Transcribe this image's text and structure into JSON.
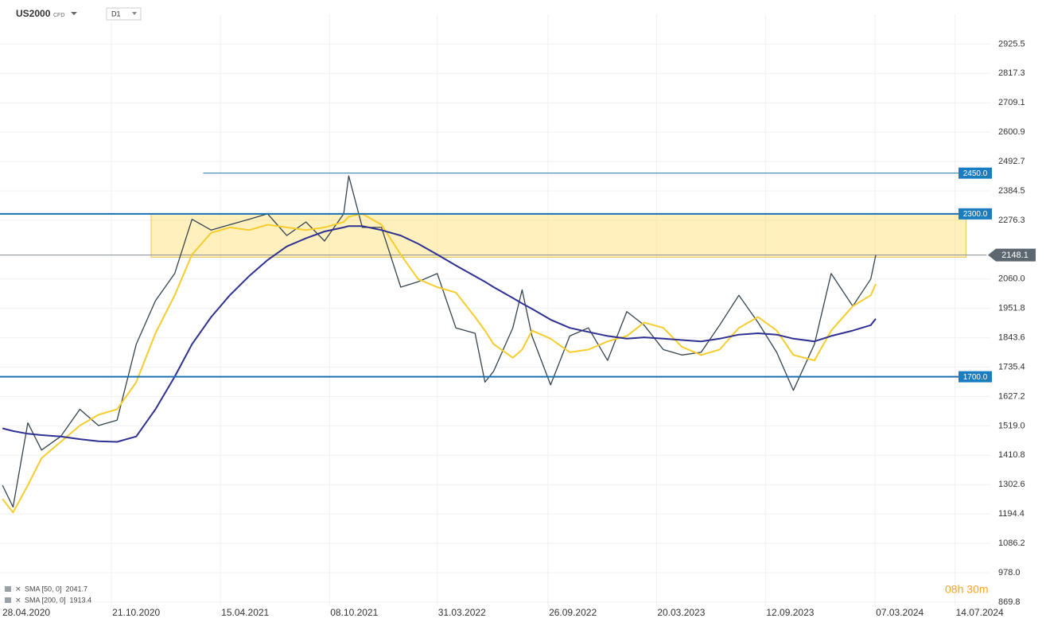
{
  "chart_data": {
    "type": "line",
    "symbol_type": "CFD",
    "timeframe": "D1",
    "x": [
      "28.04.2020",
      "15.05.2020",
      "08.06.2020",
      "30.06.2020",
      "31.07.2020",
      "31.08.2020",
      "30.09.2020",
      "30.10.2020",
      "30.11.2020",
      "31.12.2020",
      "31.01.2021",
      "28.02.2021",
      "31.03.2021",
      "30.04.2021",
      "31.05.2021",
      "30.06.2021",
      "31.07.2021",
      "31.08.2021",
      "30.09.2021",
      "31.10.2021",
      "08.11.2021",
      "30.11.2021",
      "31.12.2021",
      "31.01.2022",
      "28.02.2022",
      "31.03.2022",
      "30.04.2022",
      "31.05.2022",
      "16.06.2022",
      "30.06.2022",
      "31.07.2022",
      "15.08.2022",
      "31.08.2022",
      "30.09.2022",
      "31.10.2022",
      "30.11.2022",
      "31.12.2022",
      "31.01.2023",
      "28.02.2023",
      "31.03.2023",
      "30.04.2023",
      "31.05.2023",
      "30.06.2023",
      "31.07.2023",
      "31.08.2023",
      "30.09.2023",
      "27.10.2023",
      "30.11.2023",
      "27.12.2023",
      "31.01.2024",
      "29.02.2024",
      "08.03.2024"
    ],
    "series": [
      {
        "name": "US2000",
        "color": "#34434d",
        "width": 1.3,
        "values": [
          1300,
          1220,
          1530,
          1430,
          1480,
          1580,
          1520,
          1540,
          1820,
          1980,
          2080,
          2280,
          2240,
          2260,
          2280,
          2300,
          2220,
          2270,
          2200,
          2300,
          2440,
          2250,
          2250,
          2030,
          2050,
          2080,
          1880,
          1860,
          1680,
          1720,
          1880,
          2020,
          1850,
          1670,
          1850,
          1880,
          1760,
          1940,
          1890,
          1800,
          1780,
          1790,
          1890,
          2000,
          1900,
          1790,
          1650,
          1820,
          2080,
          1960,
          2060,
          2148.1
        ]
      },
      {
        "name": "SMA [50, 0]",
        "legend_value": 2041.7,
        "color": "#f5cd2e",
        "width": 2,
        "values": [
          1250,
          1200,
          1300,
          1400,
          1460,
          1520,
          1560,
          1580,
          1680,
          1860,
          2000,
          2150,
          2230,
          2250,
          2240,
          2260,
          2250,
          2240,
          2250,
          2270,
          2290,
          2300,
          2260,
          2150,
          2060,
          2030,
          2010,
          1920,
          1870,
          1820,
          1770,
          1800,
          1870,
          1840,
          1790,
          1800,
          1830,
          1850,
          1900,
          1880,
          1810,
          1780,
          1800,
          1880,
          1920,
          1870,
          1780,
          1760,
          1870,
          1960,
          2000,
          2041.7
        ]
      },
      {
        "name": "SMA [200, 0]",
        "legend_value": 1913.4,
        "color": "#2e3192",
        "width": 2,
        "values": [
          1510,
          1500,
          1490,
          1485,
          1480,
          1470,
          1462,
          1460,
          1480,
          1580,
          1700,
          1820,
          1920,
          2000,
          2070,
          2130,
          2180,
          2210,
          2235,
          2250,
          2255,
          2255,
          2240,
          2220,
          2190,
          2150,
          2110,
          2070,
          2050,
          2030,
          1990,
          1970,
          1950,
          1910,
          1880,
          1865,
          1850,
          1840,
          1845,
          1840,
          1835,
          1830,
          1840,
          1855,
          1860,
          1855,
          1840,
          1830,
          1850,
          1870,
          1890,
          1913.4
        ]
      }
    ],
    "last_price": 2148.1,
    "levels": [
      {
        "value": 2450,
        "label": "2450.0",
        "start": "18.03.2021",
        "color": "#1f7fa6",
        "width": 1
      },
      {
        "value": 2300,
        "label": "2300.0",
        "start": "24.04.2020",
        "color": "#1a6fb0",
        "width": 2
      },
      {
        "value": 1700,
        "label": "1700.0",
        "start": "24.04.2020",
        "color": "#1a6fb0",
        "width": 2
      }
    ],
    "zone": {
      "from": 2140,
      "to": 2300,
      "start": "24.12.2020",
      "end": "01.08.2024"
    },
    "xlim": [
      "24.04.2020",
      "09.09.2024"
    ],
    "xticks": [
      "28.04.2020",
      "21.10.2020",
      "15.04.2021",
      "08.10.2021",
      "31.03.2022",
      "26.09.2022",
      "20.03.2023",
      "12.09.2023",
      "07.03.2024",
      "14.07.2024"
    ],
    "ylim": [
      855,
      3035
    ],
    "yticks": [
      869.8,
      {
        "value": 978,
        "label": "978.0"
      },
      1086.2,
      1194.4,
      1302.6,
      1410.8,
      {
        "value": 1519,
        "label": "1519.0"
      },
      1627.2,
      1735.4,
      1843.6,
      1951.8,
      {
        "value": 2060,
        "label": "2060.0"
      },
      2276.3,
      2384.5,
      2492.7,
      2600.9,
      2709.1,
      2817.3,
      2925.5
    ],
    "grid": true,
    "timer": "08h 30m"
  }
}
